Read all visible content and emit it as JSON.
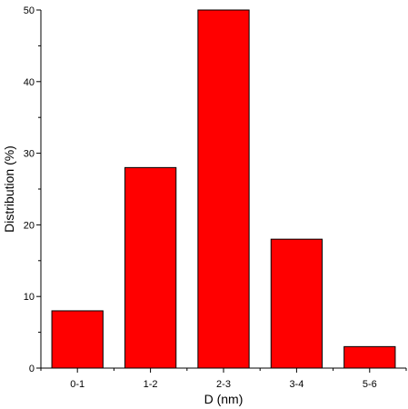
{
  "chart_data": {
    "type": "bar",
    "title": "",
    "xlabel": "D (nm)",
    "ylabel": "Distribution (%)",
    "categories": [
      "0-1",
      "1-2",
      "2-3",
      "3-4",
      "5-6"
    ],
    "values": [
      8,
      28,
      50,
      18,
      3
    ],
    "ylim": [
      0,
      50
    ],
    "yticks": [
      0,
      10,
      20,
      30,
      40,
      50
    ],
    "grid": false,
    "bar_color": "#ff0000",
    "bar_edge_color": "#000000"
  }
}
